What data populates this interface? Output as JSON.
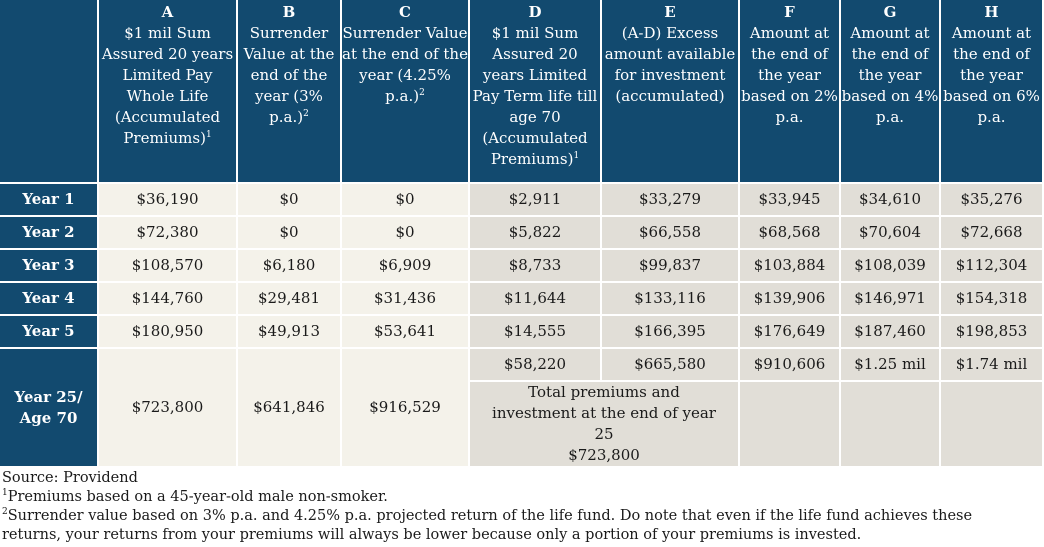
{
  "columns": [
    {
      "letter": "A",
      "label": "$1 mil Sum Assured 20 years Limited Pay Whole Life (Accumulated Premiums)",
      "note": "1"
    },
    {
      "letter": "B",
      "label": "Surrender Value at the end of the year (3% p.a.)",
      "note": "2"
    },
    {
      "letter": "C",
      "label": "Surrender Value at the end of the year (4.25% p.a.)",
      "note": "2"
    },
    {
      "letter": "D",
      "label": "$1 mil Sum Assured 20 years Limited Pay Term life till age 70 (Accumulated Premiums)",
      "note": "1"
    },
    {
      "letter": "E",
      "label": "(A-D) Excess amount available for investment (accumulated)",
      "note": ""
    },
    {
      "letter": "F",
      "label": "Amount at the end of the year based on 2% p.a.",
      "note": ""
    },
    {
      "letter": "G",
      "label": "Amount at the end of the year based on 4% p.a.",
      "note": ""
    },
    {
      "letter": "H",
      "label": "Amount at the end of the year based on 6% p.a.",
      "note": ""
    }
  ],
  "rows": [
    {
      "label": "Year 1",
      "values": [
        "$36,190",
        "$0",
        "$0",
        "$2,911",
        "$33,279",
        "$33,945",
        "$34,610",
        "$35,276"
      ]
    },
    {
      "label": "Year 2",
      "values": [
        "$72,380",
        "$0",
        "$0",
        "$5,822",
        "$66,558",
        "$68,568",
        "$70,604",
        "$72,668"
      ]
    },
    {
      "label": "Year 3",
      "values": [
        "$108,570",
        "$6,180",
        "$6,909",
        "$8,733",
        "$99,837",
        "$103,884",
        "$108,039",
        "$112,304"
      ]
    },
    {
      "label": "Year 4",
      "values": [
        "$144,760",
        "$29,481",
        "$31,436",
        "$11,644",
        "$133,116",
        "$139,906",
        "$146,971",
        "$154,318"
      ]
    },
    {
      "label": "Year 5",
      "values": [
        "$180,950",
        "$49,913",
        "$53,641",
        "$14,555",
        "$166,395",
        "$176,649",
        "$187,460",
        "$198,853"
      ]
    }
  ],
  "final_row": {
    "label": "Year 25/ Age 70",
    "values": [
      "$723,800",
      "$641,846",
      "$916,529",
      "$58,220",
      "$665,580",
      "$910,606",
      "$1.25 mil",
      "$1.74 mil"
    ],
    "total_text": "Total premiums and investment at the end of year 25",
    "total_value": "$723,800"
  },
  "footnotes": {
    "source": "Source: Providend",
    "note1": "Premiums based on a 45-year-old male non-smoker.",
    "note2": "Surrender value based on 3% p.a. and 4.25% p.a. projected return of the life fund. Do note that even if the life fund achieves these returns, your returns from your premiums will always be lower because only a portion of your premiums is invested.",
    "mark1": "1",
    "mark2": "2"
  },
  "colors": {
    "header": "#124a6f",
    "cream": "#f4f2ea",
    "gray": "#e1ded7"
  }
}
